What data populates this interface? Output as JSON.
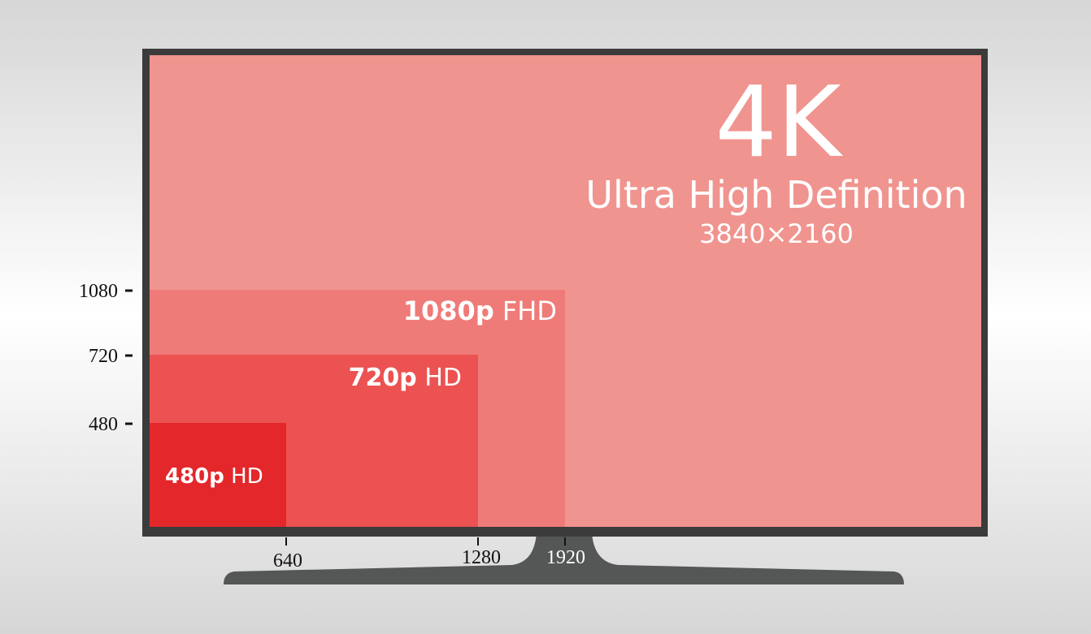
{
  "header": {
    "big": "4K",
    "subtitle": "Ultra High Definition",
    "resolution": "3840×2160"
  },
  "tiers": [
    {
      "name": "1080p",
      "suffix": "FHD"
    },
    {
      "name": "720p",
      "suffix": "HD"
    },
    {
      "name": "480p",
      "suffix": "HD"
    }
  ],
  "vertical_labels": [
    "1080",
    "720",
    "480"
  ],
  "horizontal_labels": [
    "640",
    "1280",
    "1920"
  ]
}
